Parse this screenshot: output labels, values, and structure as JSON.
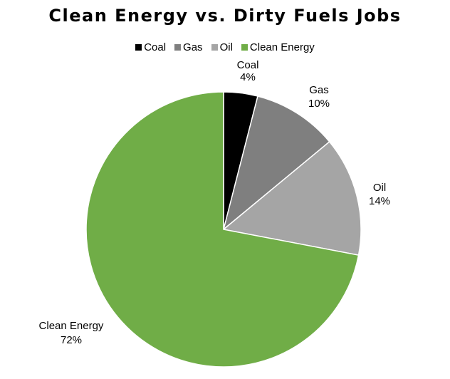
{
  "chart_data": {
    "type": "pie",
    "title": "Clean Energy vs. Dirty Fuels Jobs",
    "legend_position": "top",
    "slices": [
      {
        "name": "Coal",
        "value": 4,
        "label": "4%",
        "color": "#000000"
      },
      {
        "name": "Gas",
        "value": 10,
        "label": "10%",
        "color": "#7f7f7f"
      },
      {
        "name": "Oil",
        "value": 14,
        "label": "14%",
        "color": "#a5a5a5"
      },
      {
        "name": "Clean Energy",
        "value": 72,
        "label": "72%",
        "color": "#70ad47"
      }
    ]
  }
}
